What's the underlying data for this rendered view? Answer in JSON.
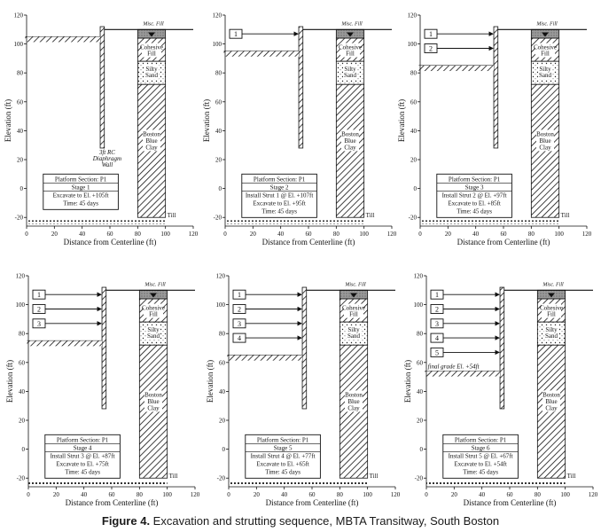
{
  "figure": {
    "caption_label": "Figure 4.",
    "caption_text": " Excavation and strutting sequence, MBTA Transitway, South Boston"
  },
  "axes": {
    "x_label": "Distance from Centerline (ft)",
    "y_label": "Elevation (ft)",
    "x_ticks": [
      "0",
      "20",
      "40",
      "60",
      "80",
      "100",
      "120"
    ],
    "y_ticks": [
      "120",
      "100",
      "80",
      "60",
      "40",
      "20",
      "0",
      "-20"
    ],
    "x_range": [
      0,
      120
    ],
    "y_range": [
      -26,
      120
    ]
  },
  "soil": {
    "misc_fill": "Misc. Fill",
    "cohesive": [
      "Cohesive",
      "Fill"
    ],
    "silty": [
      "Silty",
      "Sand"
    ],
    "clay": [
      "Boston",
      "Blue",
      "Clay"
    ],
    "till": "Till"
  },
  "wall_note": [
    "3ft RC",
    "Diaphragm",
    "Wall"
  ],
  "final_grade_note": "final grade El. +54ft",
  "panels": [
    {
      "id": 1,
      "struts": [],
      "excavation_elevation": 105,
      "box": [
        "Platform Section: P1",
        "Stage 1",
        "Excavate to El. +105ft",
        "Time: 45 days"
      ]
    },
    {
      "id": 2,
      "struts": [
        {
          "label": "1",
          "elevation": 107
        }
      ],
      "excavation_elevation": 95,
      "box": [
        "Platform Section: P1",
        "Stage 2",
        "Install Strut 1 @ El. +107ft",
        "Excavate to El. +95ft",
        "Time: 45 days"
      ]
    },
    {
      "id": 3,
      "struts": [
        {
          "label": "1",
          "elevation": 107
        },
        {
          "label": "2",
          "elevation": 97
        }
      ],
      "excavation_elevation": 85,
      "box": [
        "Platform Section: P1",
        "Stage 3",
        "Install Strut 2 @ El. +97ft",
        "Excavate to El. +85ft",
        "Time: 45 days"
      ]
    },
    {
      "id": 4,
      "struts": [
        {
          "label": "1",
          "elevation": 107
        },
        {
          "label": "2",
          "elevation": 97
        },
        {
          "label": "3",
          "elevation": 87
        }
      ],
      "excavation_elevation": 75,
      "box": [
        "Platform Section: P1",
        "Stage 4",
        "Install Strut 3 @ El. +87ft",
        "Excavate to El. +75ft",
        "Time: 45 days"
      ]
    },
    {
      "id": 5,
      "struts": [
        {
          "label": "1",
          "elevation": 107
        },
        {
          "label": "2",
          "elevation": 97
        },
        {
          "label": "3",
          "elevation": 87
        },
        {
          "label": "4",
          "elevation": 77
        }
      ],
      "excavation_elevation": 65,
      "box": [
        "Platform Section: P1",
        "Stage 5",
        "Install Strut 4 @ El. +77ft",
        "Excavate to El. +65ft",
        "Time: 45 days"
      ]
    },
    {
      "id": 6,
      "struts": [
        {
          "label": "1",
          "elevation": 107
        },
        {
          "label": "2",
          "elevation": 97
        },
        {
          "label": "3",
          "elevation": 87
        },
        {
          "label": "4",
          "elevation": 77
        },
        {
          "label": "5",
          "elevation": 67
        }
      ],
      "excavation_elevation": 54,
      "box": [
        "Platform Section: P1",
        "Stage 6",
        "Install Strut 5 @ El. +67ft",
        "Excavate to El. +54ft",
        "Time: 45 days"
      ]
    }
  ]
}
